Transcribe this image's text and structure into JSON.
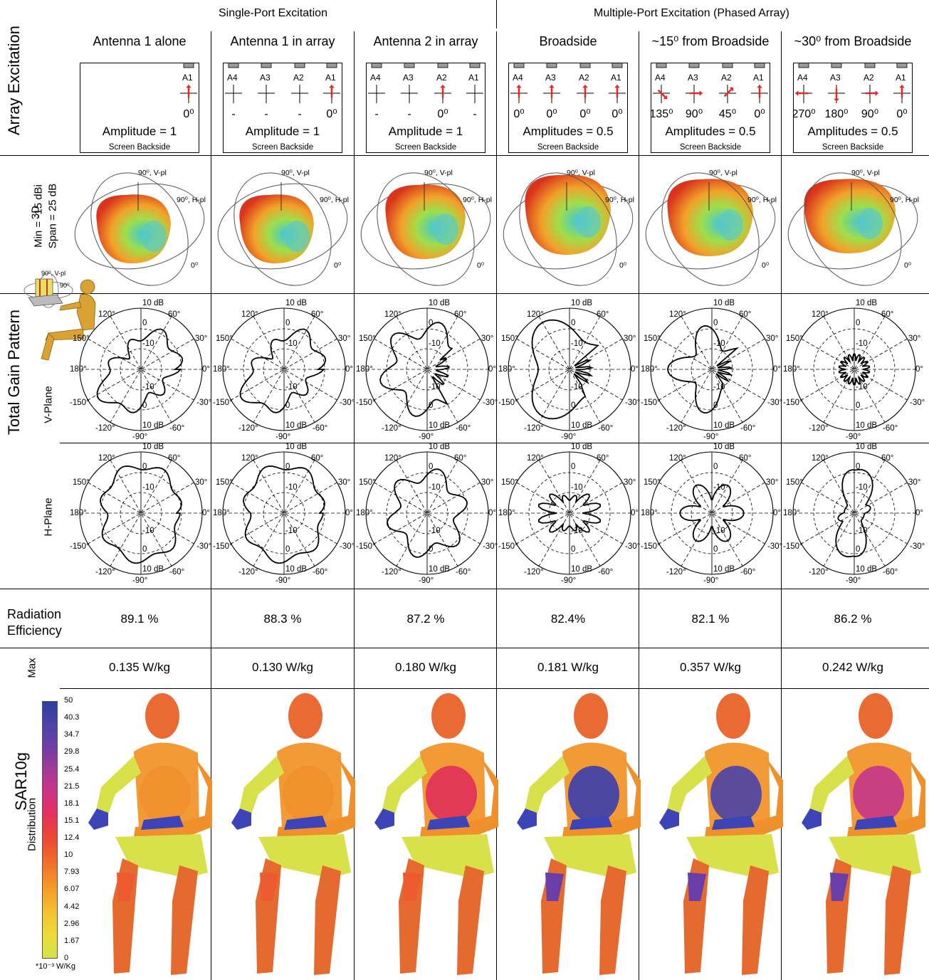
{
  "groups": {
    "single": "Single-Port Excitation",
    "multi": "Multiple-Port Excitation (Phased Array)"
  },
  "row_labels": {
    "array_excitation": "Array Excitation",
    "threed_title": "3D",
    "threed_min": "Min = -15 dBi",
    "threed_span": "Span = 25 dB",
    "total_gain": "Total Gain Pattern",
    "vplane": "V-Plane",
    "hplane": "H-Plane",
    "radiation_efficiency": "Radiation\nEfficiency",
    "max": "Max",
    "sar": "SAR10g",
    "distribution": "Distribution"
  },
  "columns": [
    {
      "title": "Antenna 1 alone",
      "amplitude": "Amplitude = 1",
      "efficiency": "89.1 %",
      "max_sar": "0.135 W/kg"
    },
    {
      "title": "Antenna 1 in array",
      "amplitude": "Amplitude = 1",
      "efficiency": "88.3 %",
      "max_sar": "0.130 W/kg"
    },
    {
      "title": "Antenna 2 in array",
      "amplitude": "Amplitude = 1",
      "efficiency": "87.2 %",
      "max_sar": "0.180 W/kg"
    },
    {
      "title": "Broadside",
      "amplitude": "Amplitudes = 0.5",
      "efficiency": "82.4%",
      "max_sar": "0.181 W/kg"
    },
    {
      "title": "~15⁰ from Broadside",
      "amplitude": "Amplitudes = 0.5",
      "efficiency": "82.1 %",
      "max_sar": "0.357 W/kg"
    },
    {
      "title": "~30⁰ from Broadside",
      "amplitude": "Amplitudes = 0.5",
      "efficiency": "86.2 %",
      "max_sar": "0.242 W/kg"
    }
  ],
  "excitation": {
    "screen_backside": "Screen Backside",
    "antenna_labels": [
      "A4",
      "A3",
      "A2",
      "A1"
    ],
    "phases": [
      [
        "-",
        "-",
        "-",
        "0⁰"
      ],
      [
        "-",
        "-",
        "-",
        "0⁰"
      ],
      [
        "-",
        "-",
        "0⁰",
        "-"
      ],
      [
        "0⁰",
        "0⁰",
        "0⁰",
        "0⁰"
      ],
      [
        "135⁰",
        "90⁰",
        "45⁰",
        "0⁰"
      ],
      [
        "270⁰",
        "180⁰",
        "90⁰",
        "0⁰"
      ]
    ]
  },
  "pattern3d_labels": {
    "v": "90⁰, V-pl",
    "h": "90⁰, H-pl",
    "zero": "0⁰"
  },
  "polar_labels": {
    "top": "10 dB",
    "r0": "0",
    "r10": "-10",
    "a120": "120°",
    "a60": "60°",
    "a150": "150°",
    "a30": "30°",
    "a180": "180°",
    "a0": "0°",
    "am150": "-150°",
    "am30": "-30°",
    "am120": "-120°",
    "am60": "-60°",
    "am90": "-90°"
  },
  "mannequin_labels": {
    "v": "90⁰, V-pl",
    "h": "90⁰"
  },
  "colorbar": {
    "ticks": [
      "50",
      "40.3",
      "34.7",
      "29.8",
      "25.4",
      "21.5",
      "18.1",
      "15.1",
      "12.4",
      "10",
      "7.93",
      "6.07",
      "4.42",
      "2.96",
      "1.67",
      "0"
    ],
    "unit": "*10⁻³ W/Kg",
    "colors": [
      "#2e3f9e",
      "#4a42a8",
      "#6a3ea8",
      "#9a3a9a",
      "#c5358a",
      "#e0306a",
      "#ea3f3f",
      "#ef5a2c",
      "#f4802a",
      "#f5a42a",
      "#f5c531",
      "#e9de3c",
      "#d4e04a"
    ]
  }
}
